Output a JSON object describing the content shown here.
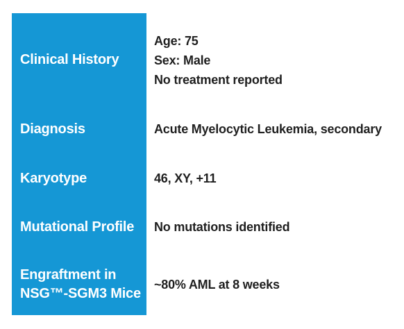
{
  "rows": {
    "clinical_history": {
      "label": "Clinical History",
      "lines": [
        "Age: 75",
        "Sex: Male",
        "No treatment reported"
      ]
    },
    "diagnosis": {
      "label": "Diagnosis",
      "value": "Acute Myelocytic Leukemia, secondary"
    },
    "karyotype": {
      "label": "Karyotype",
      "value": "46, XY, +11"
    },
    "mutational_profile": {
      "label": "Mutational Profile",
      "value": "No mutations identified"
    },
    "engraftment": {
      "label_line1": "Engraftment in",
      "label_line2": "NSG™-SGM3 Mice",
      "value": "~80% AML at 8 weeks"
    }
  },
  "colors": {
    "label_panel": "#1597d5",
    "label_text": "#ffffff",
    "value_text": "#1f1f1f"
  }
}
